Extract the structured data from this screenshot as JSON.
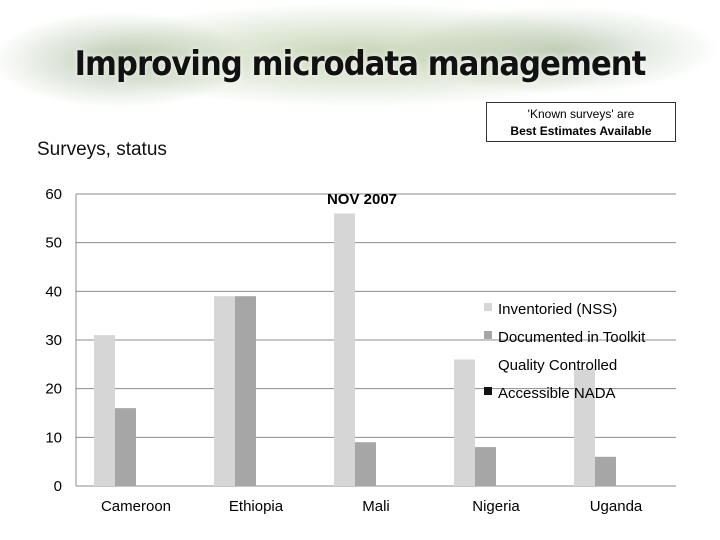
{
  "slide": {
    "title": "Improving microdata management",
    "subtitle": "Surveys, status",
    "note_line1": "'Known surveys' are",
    "note_line2": "Best Estimates Available"
  },
  "chart_data": {
    "type": "bar",
    "title": "",
    "annotation": "NOV 2007",
    "categories": [
      "Cameroon",
      "Ethiopia",
      "Mali",
      "Nigeria",
      "Uganda"
    ],
    "series": [
      {
        "name": "Inventoried (NSS)",
        "color": "#d6d6d6",
        "values": [
          31,
          39,
          56,
          26,
          24
        ]
      },
      {
        "name": "Documented in Toolkit",
        "color": "#a6a6a6",
        "values": [
          16,
          39,
          9,
          8,
          6
        ]
      },
      {
        "name": "Quality Controlled",
        "color": "#ffffff",
        "values": [
          0,
          0,
          0,
          0,
          0
        ]
      },
      {
        "name": "Accessible NADA",
        "color": "#111111",
        "values": [
          0,
          0,
          0,
          0,
          0
        ]
      }
    ],
    "yticks": [
      0,
      10,
      20,
      30,
      40,
      50,
      60
    ],
    "ylim": [
      0,
      60
    ],
    "grid": true,
    "legend": "right"
  }
}
